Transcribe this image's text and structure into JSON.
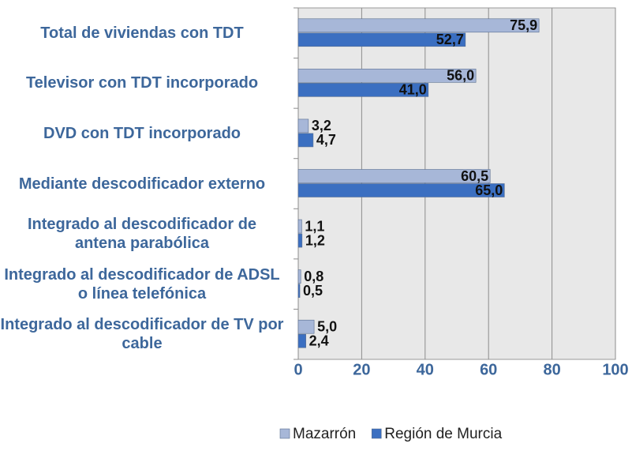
{
  "chart_data": {
    "type": "bar",
    "orientation": "horizontal",
    "categories": [
      "Total de viviendas con TDT",
      "Televisor con TDT incorporado",
      "DVD con TDT incorporado",
      "Mediante descodificador externo",
      "Integrado al descodificador de antena parabólica",
      "Integrado al descodificador de ADSL o línea telefónica",
      "Integrado al descodificador de TV por cable"
    ],
    "series": [
      {
        "name": "Mazarrón",
        "color": "#a7b7d8",
        "values": [
          75.9,
          56.0,
          3.2,
          60.5,
          1.1,
          0.8,
          5.0
        ],
        "value_labels": [
          "75,9",
          "56,0",
          "3,2",
          "60,5",
          "1,1",
          "0,8",
          "5,0"
        ]
      },
      {
        "name": "Región de Murcia",
        "color": "#3b6fc1",
        "values": [
          52.7,
          41.0,
          4.7,
          65.0,
          1.2,
          0.5,
          2.4
        ],
        "value_labels": [
          "52,7",
          "41,0",
          "4,7",
          "65,0",
          "1,2",
          "0,5",
          "2,4"
        ]
      }
    ],
    "xlim": [
      0,
      100
    ],
    "xticks": [
      0,
      20,
      40,
      60,
      80,
      100
    ],
    "grid": true,
    "legend": "bottom"
  }
}
